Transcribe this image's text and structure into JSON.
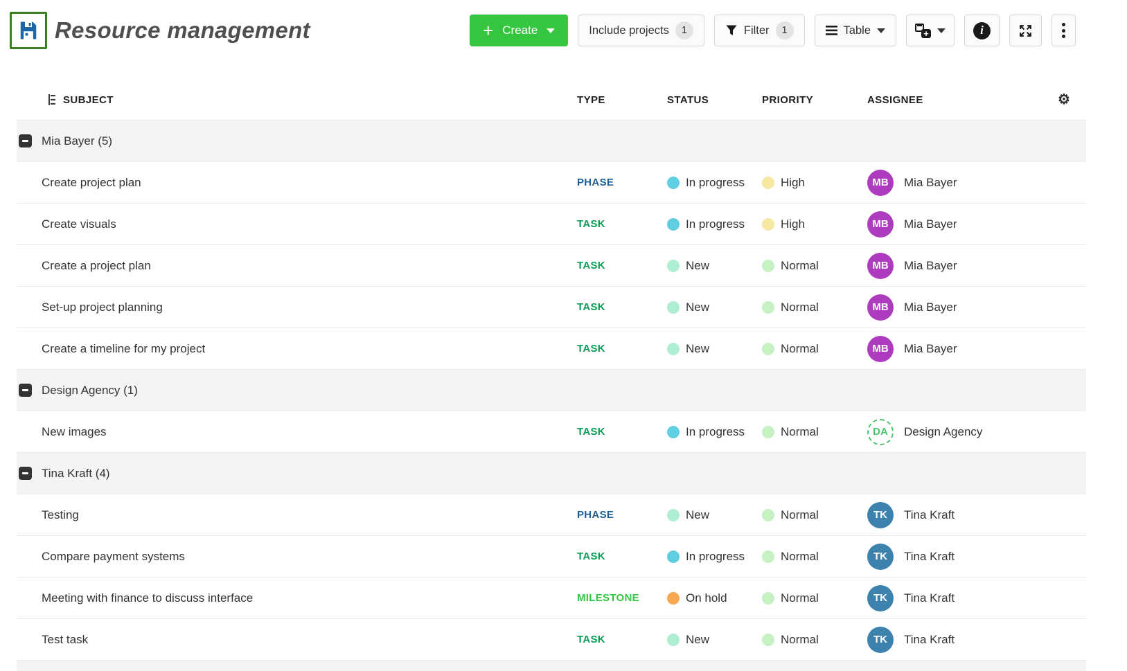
{
  "page": {
    "title": "Resource management"
  },
  "icons": {
    "gear": "⚙",
    "plus": "+",
    "info": "i",
    "cards_plus": "+"
  },
  "toolbar": {
    "create": {
      "label": "Create"
    },
    "include_projects": {
      "label": "Include projects",
      "count": "1"
    },
    "filter": {
      "label": "Filter",
      "count": "1"
    },
    "view": {
      "label": "Table"
    }
  },
  "columns": {
    "subject": "SUBJECT",
    "type": "TYPE",
    "status": "STATUS",
    "priority": "PRIORITY",
    "assignee": "ASSIGNEE"
  },
  "groups": [
    {
      "label": "Mia Bayer (5)",
      "rows": [
        {
          "subject": "Create project plan",
          "type": "PHASE",
          "type_key": "phase",
          "status": "In progress",
          "status_key": "in_progress",
          "priority": "High",
          "priority_key": "high",
          "assignee": "Mia Bayer",
          "initials": "MB",
          "avatar_key": "mia_bayer",
          "avatar_type": "user"
        },
        {
          "subject": "Create visuals",
          "type": "TASK",
          "type_key": "task",
          "status": "In progress",
          "status_key": "in_progress",
          "priority": "High",
          "priority_key": "high",
          "assignee": "Mia Bayer",
          "initials": "MB",
          "avatar_key": "mia_bayer",
          "avatar_type": "user"
        },
        {
          "subject": "Create a project plan",
          "type": "TASK",
          "type_key": "task",
          "status": "New",
          "status_key": "new",
          "priority": "Normal",
          "priority_key": "normal",
          "assignee": "Mia Bayer",
          "initials": "MB",
          "avatar_key": "mia_bayer",
          "avatar_type": "user"
        },
        {
          "subject": "Set-up project planning",
          "type": "TASK",
          "type_key": "task",
          "status": "New",
          "status_key": "new",
          "priority": "Normal",
          "priority_key": "normal",
          "assignee": "Mia Bayer",
          "initials": "MB",
          "avatar_key": "mia_bayer",
          "avatar_type": "user"
        },
        {
          "subject": "Create a timeline for my project",
          "type": "TASK",
          "type_key": "task",
          "status": "New",
          "status_key": "new",
          "priority": "Normal",
          "priority_key": "normal",
          "assignee": "Mia Bayer",
          "initials": "MB",
          "avatar_key": "mia_bayer",
          "avatar_type": "user"
        }
      ]
    },
    {
      "label": "Design Agency (1)",
      "rows": [
        {
          "subject": "New images",
          "type": "TASK",
          "type_key": "task",
          "status": "In progress",
          "status_key": "in_progress",
          "priority": "Normal",
          "priority_key": "normal",
          "assignee": "Design Agency",
          "initials": "DA",
          "avatar_key": "design_agency",
          "avatar_type": "group"
        }
      ]
    },
    {
      "label": "Tina Kraft (4)",
      "rows": [
        {
          "subject": "Testing",
          "type": "PHASE",
          "type_key": "phase",
          "status": "New",
          "status_key": "new",
          "priority": "Normal",
          "priority_key": "normal",
          "assignee": "Tina Kraft",
          "initials": "TK",
          "avatar_key": "tina_kraft",
          "avatar_type": "user"
        },
        {
          "subject": "Compare payment systems",
          "type": "TASK",
          "type_key": "task",
          "status": "In progress",
          "status_key": "in_progress",
          "priority": "Normal",
          "priority_key": "normal",
          "assignee": "Tina Kraft",
          "initials": "TK",
          "avatar_key": "tina_kraft",
          "avatar_type": "user"
        },
        {
          "subject": "Meeting with finance to discuss interface",
          "type": "MILESTONE",
          "type_key": "milestone",
          "status": "On hold",
          "status_key": "on_hold",
          "priority": "Normal",
          "priority_key": "normal",
          "assignee": "Tina Kraft",
          "initials": "TK",
          "avatar_key": "tina_kraft",
          "avatar_type": "user"
        },
        {
          "subject": "Test task",
          "type": "TASK",
          "type_key": "task",
          "status": "New",
          "status_key": "new",
          "priority": "Normal",
          "priority_key": "normal",
          "assignee": "Tina Kraft",
          "initials": "TK",
          "avatar_key": "tina_kraft",
          "avatar_type": "user"
        }
      ]
    }
  ],
  "colors": {
    "accent_green": "#35C53F",
    "save_border_green": "#3C8121",
    "floppy_blue": "#1B67A5",
    "type": {
      "phase": "#1D5F96",
      "task": "#0D9C57",
      "milestone": "#35C53F"
    },
    "status": {
      "in_progress": "#5FD0E2",
      "new": "#AFEDD3",
      "on_hold": "#F6A950"
    },
    "priority": {
      "high": "#F7E8A1",
      "normal": "#C6F1C2"
    },
    "avatar": {
      "mia_bayer": "#AE3CBE",
      "tina_kraft": "#3D81AD",
      "design_agency": "#4DC36B"
    }
  }
}
